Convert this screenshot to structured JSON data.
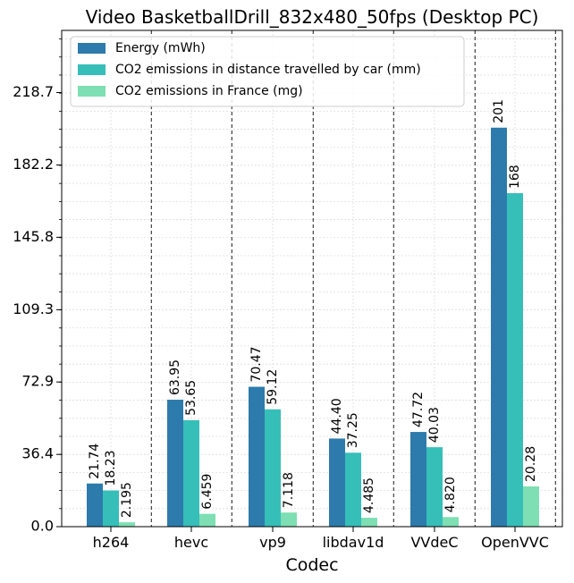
{
  "chart_data": {
    "type": "bar",
    "title": "Video BasketballDrill_832x480_50fps (Desktop PC)",
    "xlabel": "Codec",
    "ylabel": "",
    "categories": [
      "h264",
      "hevc",
      "vp9",
      "libdav1d",
      "VVdeC",
      "OpenVVC"
    ],
    "series": [
      {
        "name": "Energy (mWh)",
        "color": "#2c7bac",
        "values": [
          21.74,
          63.95,
          70.47,
          44.4,
          47.72,
          201
        ],
        "labels": [
          "21.74",
          "63.95",
          "70.47",
          "44.40",
          "47.72",
          "201"
        ]
      },
      {
        "name": "CO2 emissions in distance travelled by car (mm)",
        "color": "#36beb9",
        "values": [
          18.23,
          53.65,
          59.12,
          37.25,
          40.03,
          168
        ],
        "labels": [
          "18.23",
          "53.65",
          "59.12",
          "37.25",
          "40.03",
          "168"
        ]
      },
      {
        "name": "CO2 emissions in France (mg)",
        "color": "#7ddfb3",
        "values": [
          2.195,
          6.459,
          7.118,
          4.485,
          4.82,
          20.28
        ],
        "labels": [
          "2.195",
          "6.459",
          "7.118",
          "4.485",
          "4.820",
          "20.28"
        ]
      }
    ],
    "yticks": [
      0.0,
      36.4,
      72.9,
      109.3,
      145.8,
      182.2,
      218.7
    ],
    "ytick_labels": [
      "0.0",
      "36.4",
      "72.9",
      "109.3",
      "145.8",
      "182.2",
      "218.7"
    ],
    "ylim": [
      0,
      250
    ],
    "grid": true,
    "legend_position": "top-left",
    "separators": "dashed vertical lines between codec groups"
  }
}
